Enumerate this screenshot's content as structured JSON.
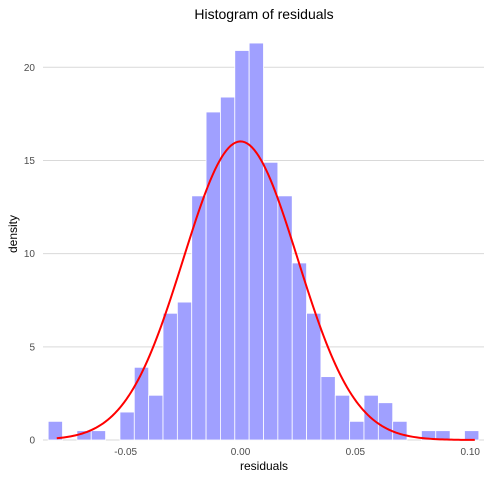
{
  "chart_data": {
    "type": "bar",
    "title": "Histogram of residuals",
    "xlabel": "residuals",
    "ylabel": "density",
    "xlim": [
      -0.086,
      0.106
    ],
    "ylim": [
      0,
      22
    ],
    "x_ticks": [
      -0.05,
      0.0,
      0.05,
      0.1
    ],
    "x_tick_labels": [
      "-0.05",
      "0.00",
      "0.05",
      "0.10"
    ],
    "y_ticks": [
      0,
      5,
      10,
      15,
      20
    ],
    "y_tick_labels": [
      "0",
      "5",
      "10",
      "15",
      "20"
    ],
    "grid": "horizontal",
    "bin_width": 0.00625,
    "bins": [
      {
        "x0": -0.08375,
        "density": 1.0
      },
      {
        "x0": -0.0775,
        "density": 0.0
      },
      {
        "x0": -0.07125,
        "density": 0.5
      },
      {
        "x0": -0.065,
        "density": 0.5
      },
      {
        "x0": -0.05875,
        "density": 0.0
      },
      {
        "x0": -0.0525,
        "density": 1.5
      },
      {
        "x0": -0.04625,
        "density": 3.9
      },
      {
        "x0": -0.04,
        "density": 2.4
      },
      {
        "x0": -0.03375,
        "density": 6.8
      },
      {
        "x0": -0.0275,
        "density": 7.4
      },
      {
        "x0": -0.02125,
        "density": 13.1
      },
      {
        "x0": -0.015,
        "density": 17.6
      },
      {
        "x0": -0.00875,
        "density": 18.4
      },
      {
        "x0": -0.0025,
        "density": 20.9
      },
      {
        "x0": 0.00375,
        "density": 21.3
      },
      {
        "x0": 0.01,
        "density": 14.9
      },
      {
        "x0": 0.01625,
        "density": 13.1
      },
      {
        "x0": 0.0225,
        "density": 9.5
      },
      {
        "x0": 0.02875,
        "density": 6.8
      },
      {
        "x0": 0.035,
        "density": 3.4
      },
      {
        "x0": 0.04125,
        "density": 2.4
      },
      {
        "x0": 0.0475,
        "density": 1.0
      },
      {
        "x0": 0.05375,
        "density": 2.4
      },
      {
        "x0": 0.06,
        "density": 2.0
      },
      {
        "x0": 0.06625,
        "density": 1.0
      },
      {
        "x0": 0.0725,
        "density": 0.0
      },
      {
        "x0": 0.07875,
        "density": 0.5
      },
      {
        "x0": 0.085,
        "density": 0.5
      },
      {
        "x0": 0.09125,
        "density": 0.0
      },
      {
        "x0": 0.0975,
        "density": 0.5
      }
    ],
    "density_curve": {
      "mean": 0.0,
      "sd": 0.0249,
      "x_range": [
        -0.08,
        0.102
      ]
    },
    "colors": {
      "bars": "#a0a0ff",
      "bar_border": "#ffffff",
      "curve": "#ff0000",
      "grid": "#d9d9d9"
    }
  }
}
